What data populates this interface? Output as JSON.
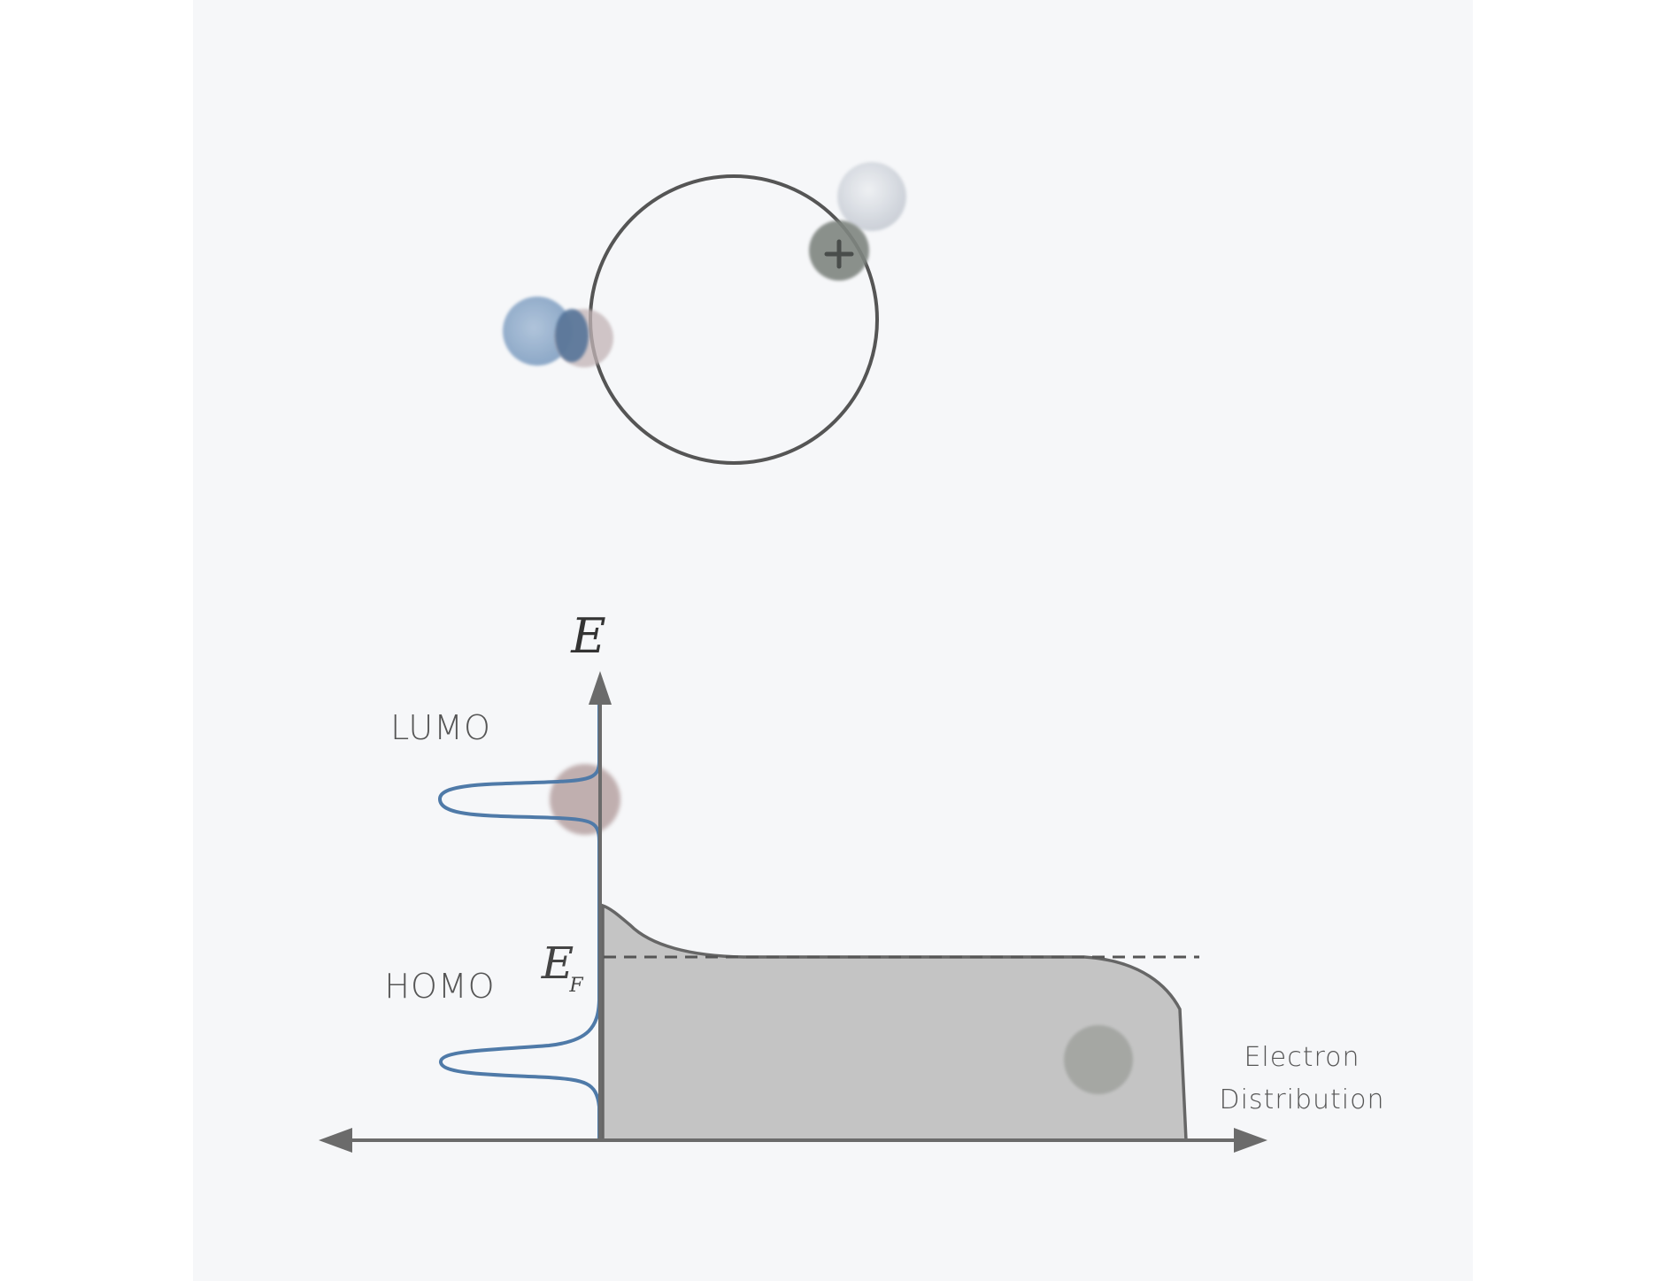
{
  "diagram": {
    "axis_labels": {
      "energy": "E",
      "fermi_main": "E",
      "fermi_sub": "F",
      "x_line1": "Electron",
      "x_line2": "Distribution"
    },
    "orbital_labels": {
      "lumo": "LUMO",
      "homo": "HOMO"
    },
    "colors": {
      "paper": "#f6f7f9",
      "axis": "#6b6b6b",
      "orbital_curve": "#4f7aa8",
      "distribution_fill": "#c4c4c4",
      "distribution_stroke": "#666666",
      "ring": "#555555",
      "electron_in_band": "#a2a4a0",
      "electron_lumo": "#b7a3a3",
      "molecule_blue": "#8fa9c9",
      "molecule_blue_dark": "#4f6f96",
      "molecule_gray": "#7f8580",
      "molecule_light": "#d5d9de"
    },
    "icons": [
      "plus-icon"
    ]
  }
}
